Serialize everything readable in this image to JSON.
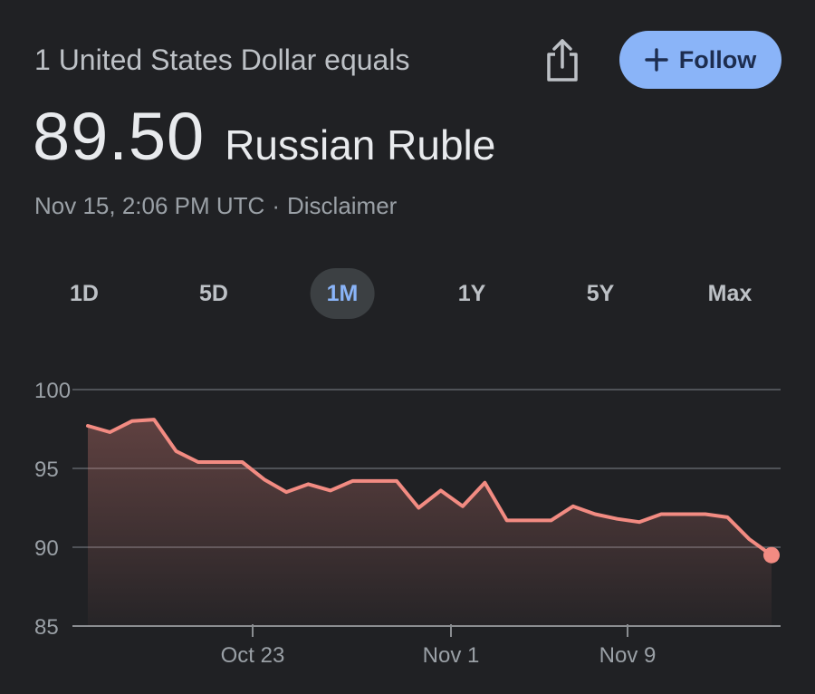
{
  "header": {
    "subtitle": "1 United States Dollar equals",
    "rate": "89.50",
    "currency": "Russian Ruble",
    "timestamp": "Nov 15, 2:06 PM UTC",
    "separator": "·",
    "disclaimer": "Disclaimer",
    "share_icon": "share-icon",
    "follow_label": "Follow",
    "follow_icon": "plus-icon",
    "follow_color": "#8ab4f8"
  },
  "tabs": [
    {
      "label": "1D",
      "active": false
    },
    {
      "label": "5D",
      "active": false
    },
    {
      "label": "1M",
      "active": true
    },
    {
      "label": "1Y",
      "active": false
    },
    {
      "label": "5Y",
      "active": false
    },
    {
      "label": "Max",
      "active": false
    }
  ],
  "chart_data": {
    "type": "area",
    "title": "",
    "xlabel": "",
    "ylabel": "",
    "ylim": [
      85,
      100
    ],
    "yticks": [
      100,
      95,
      90,
      85
    ],
    "grid": true,
    "line_color": "#f28b82",
    "x_tick_labels": [
      "Oct 23",
      "Nov 1",
      "Nov 9"
    ],
    "series": [
      {
        "values": [
          97.7,
          97.3,
          98.0,
          98.1,
          96.1,
          95.4,
          95.4,
          95.4,
          94.3,
          93.5,
          94.0,
          93.6,
          94.2,
          94.2,
          94.2,
          92.5,
          93.6,
          92.6,
          94.1,
          91.7,
          91.7,
          91.7,
          92.6,
          92.1,
          91.8,
          91.6,
          92.1,
          92.1,
          92.1,
          91.9,
          90.5,
          89.5
        ]
      }
    ]
  }
}
